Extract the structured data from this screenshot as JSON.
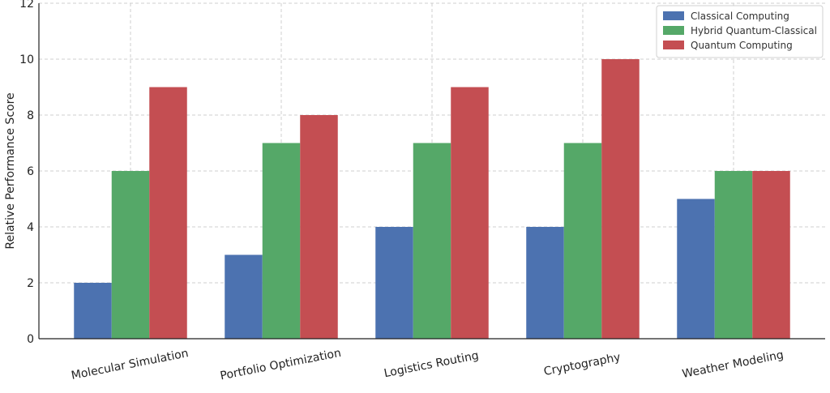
{
  "chart_data": {
    "type": "bar",
    "title": "",
    "xlabel": "",
    "ylabel": "Relative Performance Score",
    "ylim": [
      0,
      12
    ],
    "yticks": [
      0,
      2,
      4,
      6,
      8,
      10,
      12
    ],
    "grid": true,
    "legend_position": "top-right",
    "categories": [
      "Molecular Simulation",
      "Portfolio Optimization",
      "Logistics Routing",
      "Cryptography",
      "Weather Modeling"
    ],
    "series": [
      {
        "name": "Classical Computing",
        "color": "#4c72b0",
        "values": [
          2,
          3,
          4,
          4,
          5
        ]
      },
      {
        "name": "Hybrid Quantum-Classical",
        "color": "#55a868",
        "values": [
          6,
          7,
          7,
          7,
          6
        ]
      },
      {
        "name": "Quantum Computing",
        "color": "#c44e52",
        "values": [
          9,
          8,
          9,
          10,
          6
        ]
      }
    ]
  }
}
